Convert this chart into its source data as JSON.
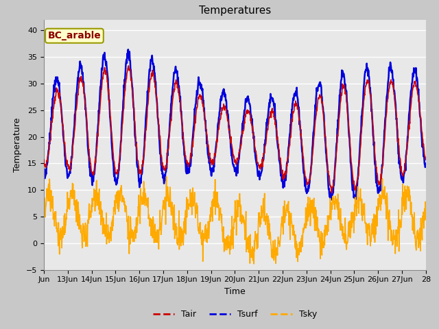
{
  "title": "Temperatures",
  "xlabel": "Time",
  "ylabel": "Temperature",
  "annotation": "BC_arable",
  "ylim": [
    -5,
    42
  ],
  "xlim": [
    0,
    16
  ],
  "x_tick_labels": [
    "Jun",
    "13Jun",
    "14Jun",
    "15Jun",
    "16Jun",
    "17Jun",
    "18Jun",
    "19Jun",
    "20Jun",
    "21Jun",
    "22Jun",
    "23Jun",
    "24Jun",
    "25Jun",
    "26Jun",
    "27Jun",
    "28"
  ],
  "yticks": [
    -5,
    0,
    5,
    10,
    15,
    20,
    25,
    30,
    35,
    40
  ],
  "fig_facecolor": "#c8c8c8",
  "plot_facecolor": "#e8e8e8",
  "tair_color": "#cc0000",
  "tsurf_color": "#0000dd",
  "tsky_color": "#ffaa00",
  "legend_entries": [
    "Tair",
    "Tsurf",
    "Tsky"
  ],
  "tair_lw": 1.2,
  "tsurf_lw": 1.8,
  "tsky_lw": 1.2,
  "title_fontsize": 11,
  "label_fontsize": 9,
  "tick_fontsize": 8,
  "annot_fontsize": 10
}
